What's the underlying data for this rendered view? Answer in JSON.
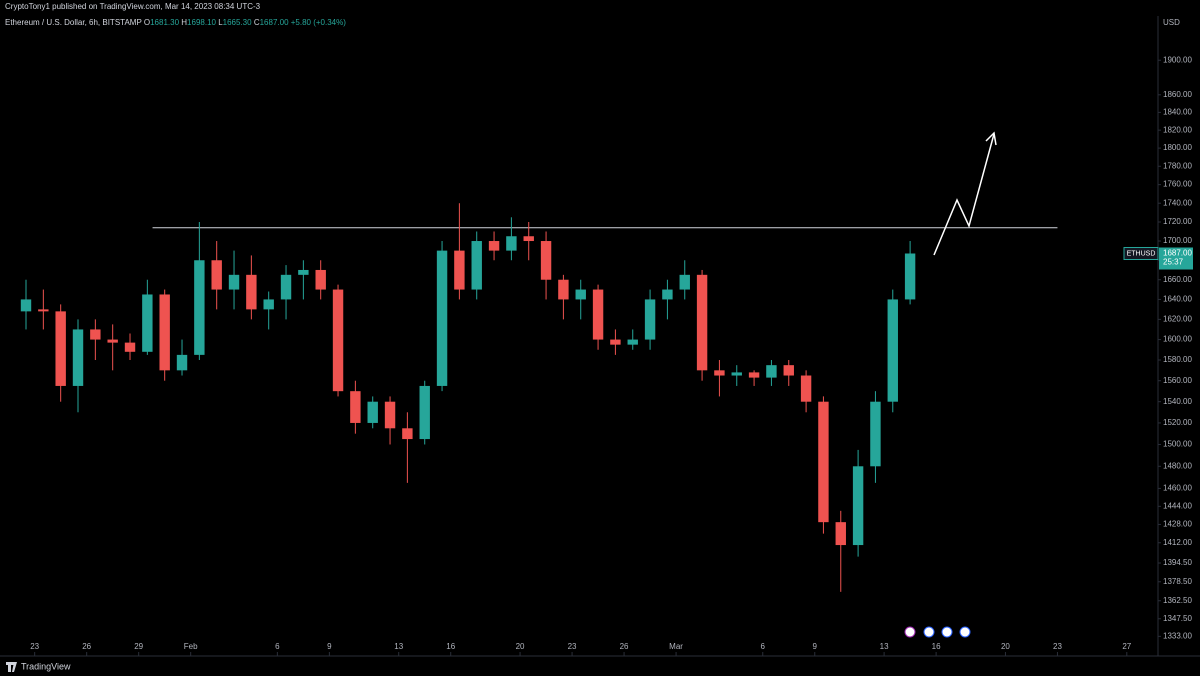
{
  "header": {
    "published": "CryptoTony1 published on TradingView.com, Mar 14, 2023 08:34 UTC-3",
    "symbol": "Ethereum / U.S. Dollar, 6h, BITSTAMP",
    "ohlc": [
      {
        "key": "O",
        "value": "1681.30"
      },
      {
        "key": "H",
        "value": "1698.10"
      },
      {
        "key": "L",
        "value": "1665.30"
      },
      {
        "key": "C",
        "value": "1687.00"
      }
    ],
    "change": "+5.80 (+0.34%)",
    "currency": "USD"
  },
  "price_tag": {
    "symbol": "ETHUSD",
    "price": 1687.0,
    "price_label": "1687.00",
    "countdown": "25:37"
  },
  "footer": {
    "brand": "TradingView"
  },
  "chart_data": {
    "type": "candlestick",
    "log_scale": true,
    "grid": false,
    "up_color": "#26a69a",
    "down_color": "#ef5350",
    "resistance": 1714,
    "resistance_x": [
      6.8,
      59
    ],
    "xlim": [
      -2,
      64.8
    ],
    "xticks": [
      {
        "value": 0,
        "label": "23"
      },
      {
        "value": 3,
        "label": "26"
      },
      {
        "value": 6,
        "label": "29"
      },
      {
        "value": 9,
        "label": "Feb"
      },
      {
        "value": 14,
        "label": "6"
      },
      {
        "value": 17,
        "label": "9"
      },
      {
        "value": 21,
        "label": "13"
      },
      {
        "value": 24,
        "label": "16"
      },
      {
        "value": 28,
        "label": "20"
      },
      {
        "value": 31,
        "label": "23"
      },
      {
        "value": 34,
        "label": "26"
      },
      {
        "value": 37,
        "label": "Mar"
      },
      {
        "value": 42,
        "label": "6"
      },
      {
        "value": 45,
        "label": "9"
      },
      {
        "value": 49,
        "label": "13"
      },
      {
        "value": 52,
        "label": "16"
      },
      {
        "value": 56,
        "label": "20"
      },
      {
        "value": 59,
        "label": "23"
      },
      {
        "value": 63,
        "label": "27"
      }
    ],
    "ylim": [
      1330,
      1950
    ],
    "yticks": [
      {
        "value": 1333,
        "label": "1333.00"
      },
      {
        "value": 1347.5,
        "label": "1347.50"
      },
      {
        "value": 1362.5,
        "label": "1362.50"
      },
      {
        "value": 1378.5,
        "label": "1378.50"
      },
      {
        "value": 1394.5,
        "label": "1394.50"
      },
      {
        "value": 1412,
        "label": "1412.00"
      },
      {
        "value": 1428,
        "label": "1428.00"
      },
      {
        "value": 1444,
        "label": "1444.00"
      },
      {
        "value": 1460,
        "label": "1460.00"
      },
      {
        "value": 1480,
        "label": "1480.00"
      },
      {
        "value": 1500,
        "label": "1500.00"
      },
      {
        "value": 1520,
        "label": "1520.00"
      },
      {
        "value": 1540,
        "label": "1540.00"
      },
      {
        "value": 1560,
        "label": "1560.00"
      },
      {
        "value": 1580,
        "label": "1580.00"
      },
      {
        "value": 1600,
        "label": "1600.00"
      },
      {
        "value": 1620,
        "label": "1620.00"
      },
      {
        "value": 1640,
        "label": "1640.00"
      },
      {
        "value": 1660,
        "label": "1660.00"
      },
      {
        "value": 1680,
        "label": "1680.00"
      },
      {
        "value": 1700,
        "label": "1700.00"
      },
      {
        "value": 1720,
        "label": "1720.00"
      },
      {
        "value": 1740,
        "label": "1740.00"
      },
      {
        "value": 1760,
        "label": "1760.00"
      },
      {
        "value": 1780,
        "label": "1780.00"
      },
      {
        "value": 1800,
        "label": "1800.00"
      },
      {
        "value": 1820,
        "label": "1820.00"
      },
      {
        "value": 1840,
        "label": "1840.00"
      },
      {
        "value": 1860,
        "label": "1860.00"
      },
      {
        "value": 1900,
        "label": "1900.00"
      }
    ],
    "x": [
      -0.5,
      0.5,
      1.5,
      2.5,
      3.5,
      4.5,
      5.5,
      6.5,
      7.5,
      8.5,
      9.5,
      10.5,
      11.5,
      12.5,
      13.5,
      14.5,
      15.5,
      16.5,
      17.5,
      18.5,
      19.5,
      20.5,
      21.5,
      22.5,
      23.5,
      24.5,
      25.5,
      26.5,
      27.5,
      28.5,
      29.5,
      30.5,
      31.5,
      32.5,
      33.5,
      34.5,
      35.5,
      36.5,
      37.5,
      38.5,
      39.5,
      40.5,
      41.5,
      42.5,
      43.5,
      44.5,
      45.5,
      46.5,
      47.5,
      48.5,
      49.5,
      50.5
    ],
    "open": [
      1628,
      1630,
      1628,
      1555,
      1610,
      1600,
      1597,
      1588,
      1645,
      1570,
      1585,
      1680,
      1650,
      1665,
      1630,
      1640,
      1665,
      1670,
      1650,
      1550,
      1520,
      1540,
      1515,
      1505,
      1555,
      1690,
      1650,
      1700,
      1690,
      1705,
      1700,
      1660,
      1640,
      1650,
      1600,
      1595,
      1600,
      1640,
      1650,
      1665,
      1570,
      1565,
      1568,
      1563,
      1575,
      1565,
      1540,
      1430,
      1410,
      1480,
      1540,
      1640
    ],
    "high": [
      1660,
      1650,
      1635,
      1620,
      1620,
      1615,
      1606,
      1660,
      1650,
      1600,
      1720,
      1700,
      1690,
      1685,
      1648,
      1675,
      1680,
      1680,
      1655,
      1560,
      1545,
      1545,
      1530,
      1560,
      1700,
      1740,
      1710,
      1710,
      1725,
      1720,
      1710,
      1665,
      1660,
      1655,
      1610,
      1610,
      1650,
      1660,
      1680,
      1670,
      1580,
      1575,
      1570,
      1580,
      1580,
      1570,
      1545,
      1440,
      1495,
      1550,
      1650,
      1700
    ],
    "low": [
      1610,
      1610,
      1540,
      1530,
      1580,
      1570,
      1580,
      1585,
      1560,
      1565,
      1580,
      1630,
      1630,
      1620,
      1610,
      1620,
      1640,
      1640,
      1545,
      1510,
      1515,
      1500,
      1465,
      1500,
      1550,
      1640,
      1640,
      1680,
      1680,
      1680,
      1640,
      1620,
      1620,
      1590,
      1585,
      1590,
      1590,
      1620,
      1640,
      1560,
      1545,
      1555,
      1555,
      1555,
      1555,
      1530,
      1420,
      1370,
      1400,
      1465,
      1530,
      1635
    ],
    "close": [
      1640,
      1628,
      1555,
      1610,
      1600,
      1597,
      1588,
      1645,
      1570,
      1585,
      1680,
      1650,
      1665,
      1630,
      1640,
      1665,
      1670,
      1650,
      1550,
      1520,
      1540,
      1515,
      1505,
      1555,
      1690,
      1650,
      1700,
      1690,
      1705,
      1700,
      1660,
      1640,
      1650,
      1600,
      1595,
      1600,
      1640,
      1650,
      1665,
      1570,
      1565,
      1568,
      1563,
      1575,
      1565,
      1540,
      1430,
      1410,
      1480,
      1540,
      1640,
      1687
    ]
  }
}
